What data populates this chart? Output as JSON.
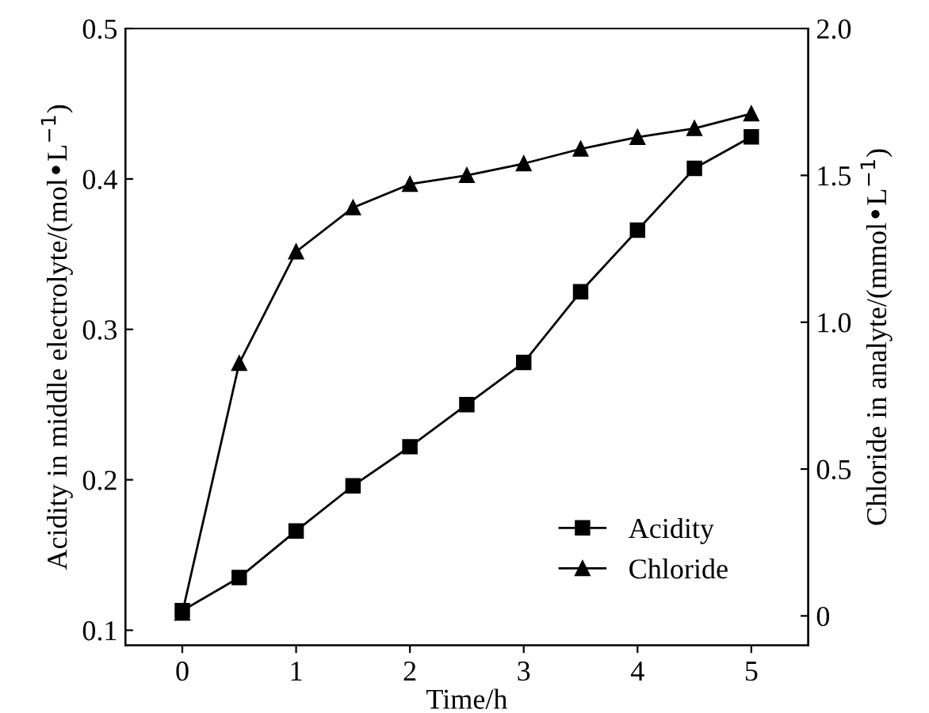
{
  "chart_data": {
    "type": "line",
    "xlabel": "Time/h",
    "ylabel": "Acidity in middle electrolyte/(mol•L$^{−1}$)",
    "y2label": "Chloride in analyte/(mmol•L$^{−1}$)",
    "x": [
      0,
      0.5,
      1,
      1.5,
      2,
      2.5,
      3,
      3.5,
      4,
      4.5,
      5
    ],
    "series": [
      {
        "name": "Acidity",
        "color": "#000000",
        "marker": "square",
        "values": [
          0.113,
          0.135,
          0.166,
          0.196,
          0.222,
          0.25,
          0.278,
          0.325,
          0.366,
          0.407,
          0.428
        ]
      },
      {
        "name": "Chloride",
        "color": "#000000",
        "marker": "triangle",
        "axis": "y2",
        "values": [
          0.01,
          0.86,
          1.24,
          1.39,
          1.47,
          1.5,
          1.54,
          1.59,
          1.63,
          1.66,
          1.71
        ]
      }
    ],
    "xlim": [
      -0.5,
      5.5
    ],
    "xticks": [
      0,
      1,
      2,
      3,
      4,
      5
    ],
    "ylim": [
      0.09,
      0.5
    ],
    "yticks": [
      0.1,
      0.2,
      0.3,
      0.4,
      0.5
    ],
    "y2lim": [
      -0.1,
      2.0
    ],
    "y2ticks": [
      0,
      0.5,
      {
        "value": 1,
        "label": "1.0"
      },
      1.5,
      {
        "value": 2,
        "label": "2.0"
      }
    ],
    "legend": "bottom right",
    "grid": false,
    "line_style": "solid"
  }
}
